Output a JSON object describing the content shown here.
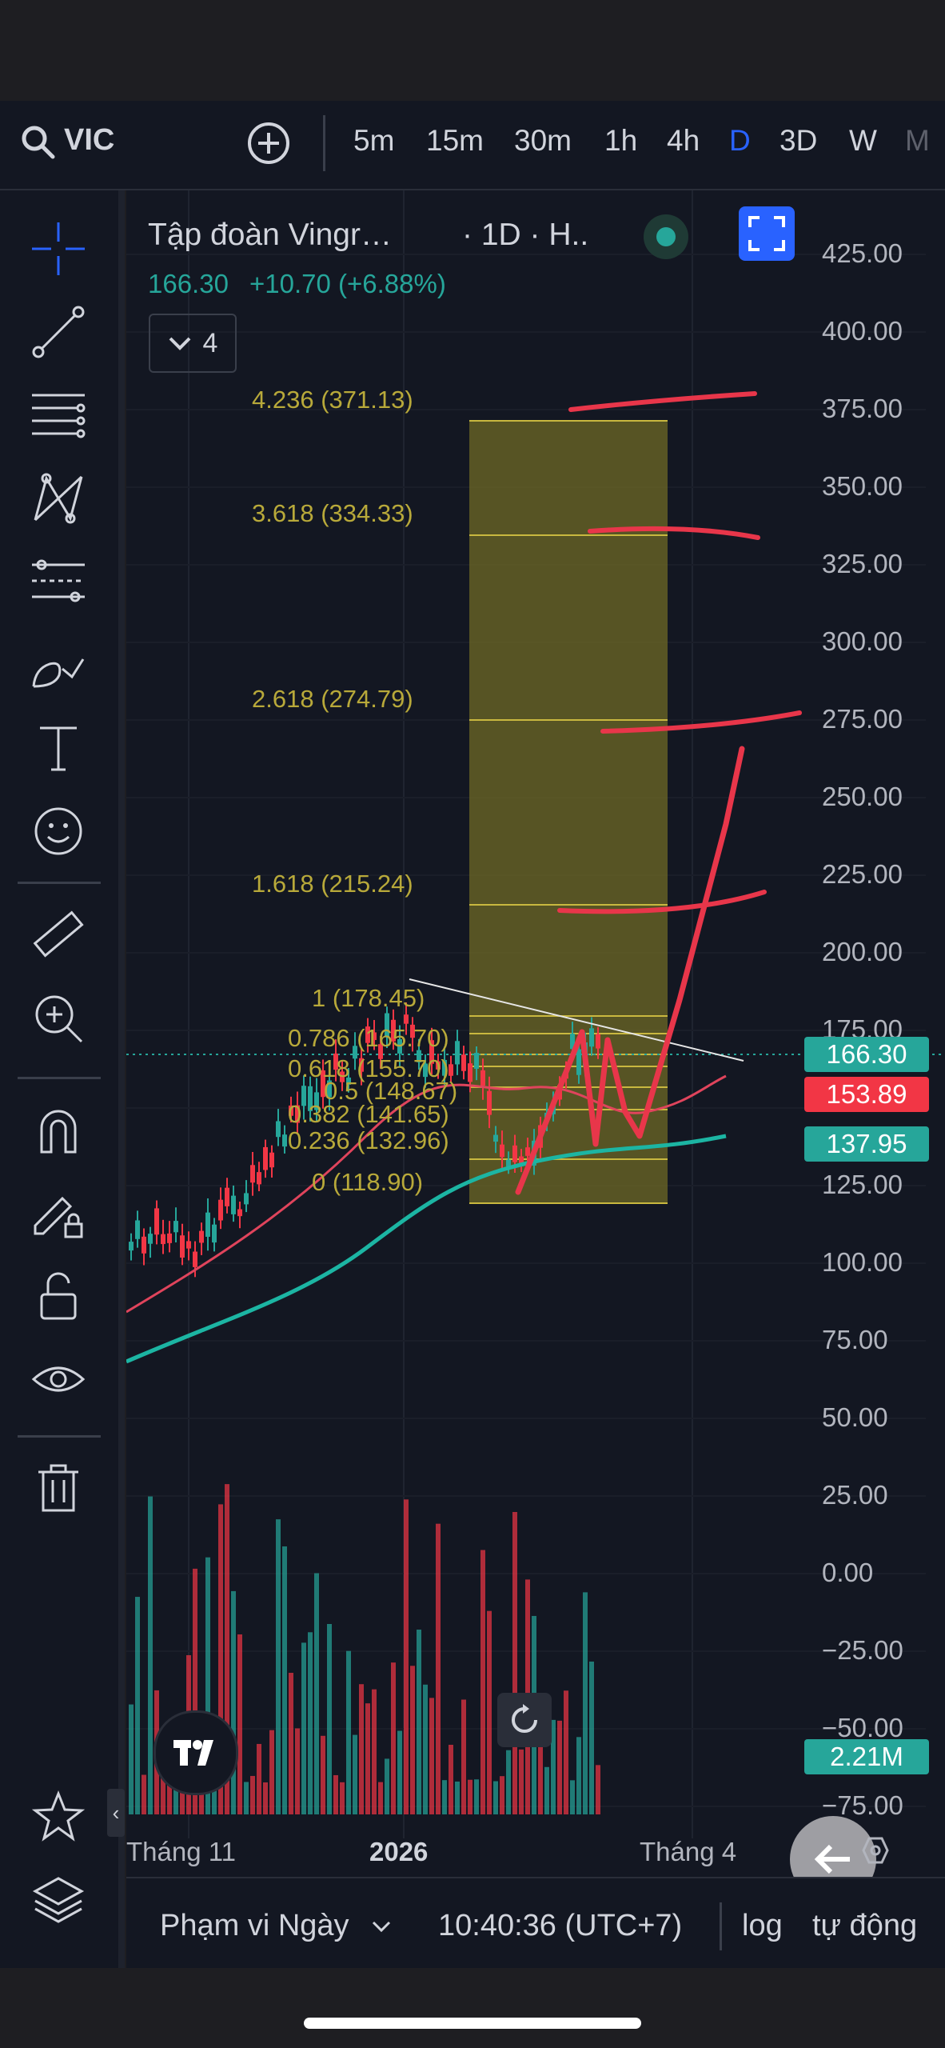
{
  "header": {
    "symbol": "VIC",
    "timeframes": [
      "5m",
      "15m",
      "30m",
      "1h",
      "4h",
      "D",
      "3D",
      "W",
      "M"
    ],
    "active_timeframe": "D"
  },
  "legend": {
    "title": "Tập đoàn Vingr…",
    "interval": "· 1D · H..",
    "price": "166.30",
    "change": "+10.70 (+6.88%)",
    "indicator_count": "4"
  },
  "price_axis": [
    "425.00",
    "400.00",
    "375.00",
    "350.00",
    "325.00",
    "300.00",
    "275.00",
    "250.00",
    "225.00",
    "200.00",
    "175.00",
    "125.00",
    "100.00",
    "75.00",
    "50.00",
    "25.00",
    "0.00",
    "−25.00",
    "−50.00",
    "−75.00"
  ],
  "price_tags": {
    "last": "166.30",
    "ma_red": "153.89",
    "ma_green": "137.95",
    "volume": "2.21M"
  },
  "fib_levels": [
    {
      "label": "4.236 (371.13)"
    },
    {
      "label": "3.618 (334.33)"
    },
    {
      "label": "2.618 (274.79)"
    },
    {
      "label": "1.618 (215.24)"
    },
    {
      "label": "1 (178.45)"
    },
    {
      "label": "0.786 (165.70)"
    },
    {
      "label": "0.618 (155.70)"
    },
    {
      "label": "0.5 (148.67)"
    },
    {
      "label": "0.382 (141.65)"
    },
    {
      "label": "0.236 (132.96)"
    },
    {
      "label": "0 (118.90)"
    }
  ],
  "time_axis": {
    "left": "Tháng 11",
    "mid": "2026",
    "right": "Tháng 4"
  },
  "footer": {
    "range": "Phạm vi Ngày",
    "time": "10:40:36 (UTC+7)",
    "log": "log",
    "auto": "tự động"
  },
  "colors": {
    "green": "#26a69a",
    "red": "#f23645",
    "accent": "#2962ff",
    "fib": "#b8a93a"
  }
}
